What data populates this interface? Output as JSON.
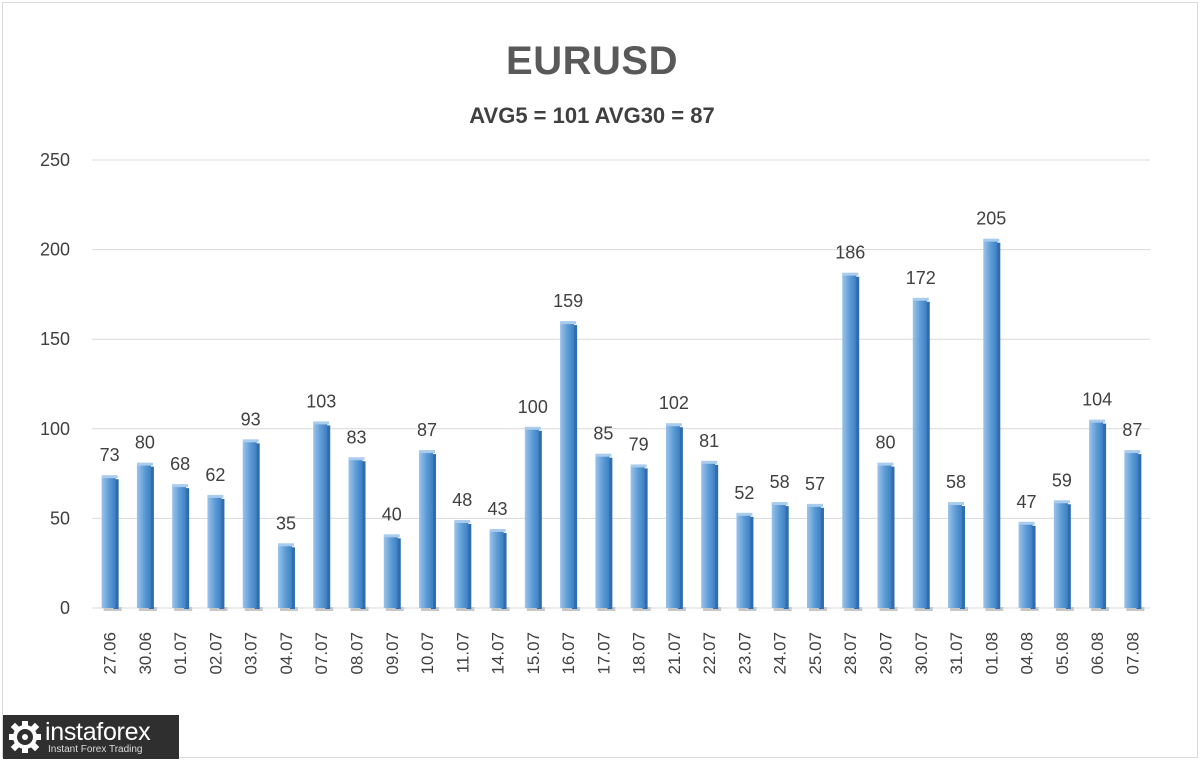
{
  "chart_data": {
    "type": "bar",
    "title": "EURUSD",
    "subtitle": "AVG5 = 101 AVG30 = 87",
    "xlabel": "",
    "ylabel": "",
    "ylim": [
      0,
      250
    ],
    "yticks": [
      0,
      50,
      100,
      150,
      200,
      250
    ],
    "grid": true,
    "legend": "none",
    "categories": [
      "27.06",
      "30.06",
      "01.07",
      "02.07",
      "03.07",
      "04.07",
      "07.07",
      "08.07",
      "09.07",
      "10.07",
      "11.07",
      "14.07",
      "15.07",
      "16.07",
      "17.07",
      "18.07",
      "21.07",
      "22.07",
      "23.07",
      "24.07",
      "25.07",
      "28.07",
      "29.07",
      "30.07",
      "31.07",
      "01.08",
      "04.08",
      "05.08",
      "06.08",
      "07.08"
    ],
    "values": [
      73,
      80,
      68,
      62,
      93,
      35,
      103,
      83,
      40,
      87,
      48,
      43,
      100,
      159,
      85,
      79,
      102,
      81,
      52,
      58,
      57,
      186,
      80,
      172,
      58,
      205,
      47,
      59,
      104,
      87
    ],
    "colors": {
      "bar": "#5b9bd5",
      "bar_dark": "#2e6db0",
      "grid": "#d9d9d9",
      "text": "#404040"
    }
  },
  "logo": {
    "name": "instaforex",
    "tagline": "Instant Forex Trading"
  }
}
